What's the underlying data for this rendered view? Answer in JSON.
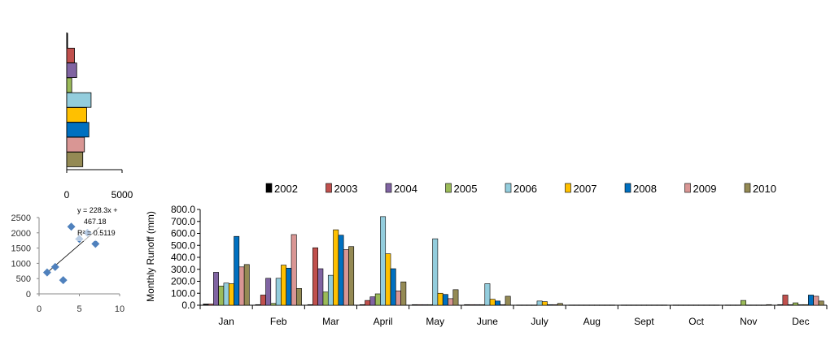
{
  "chart_data": [
    {
      "type": "bar",
      "orientation": "horizontal",
      "values": [
        80,
        700,
        900,
        450,
        2200,
        1800,
        2000,
        1600,
        1450
      ],
      "colors": [
        "#000000",
        "#c0504d",
        "#8064a2",
        "#9bbb59",
        "#93cddd",
        "#ffc000",
        "#0070c0",
        "#d99694",
        "#948a54"
      ],
      "xlim": [
        0,
        5000
      ],
      "xticks": [
        "0",
        "5000"
      ],
      "grid": false
    },
    {
      "type": "scatter",
      "x": [
        1,
        2,
        3,
        4,
        5,
        6,
        7
      ],
      "y": [
        700,
        880,
        450,
        2200,
        1800,
        2000,
        1640
      ],
      "xlim": [
        0,
        10
      ],
      "ylim": [
        0,
        2500
      ],
      "xticks": [
        "0",
        "5",
        "10"
      ],
      "yticks": [
        "0",
        "500",
        "1000",
        "1500",
        "2000",
        "2500"
      ],
      "trendline": {
        "slope": 228.3,
        "intercept": 467.18
      },
      "annotation_lines": [
        "y = 228.3x +",
        "467.18",
        "R² = 0.5119"
      ],
      "marker_color": "#4f81bd"
    },
    {
      "type": "bar",
      "ylabel": "Monthly  Runoff (mm)",
      "ylim": [
        0,
        800
      ],
      "yticks": [
        "0.0",
        "100.0",
        "200.0",
        "300.0",
        "400.0",
        "500.0",
        "600.0",
        "700.0",
        "800.0"
      ],
      "categories": [
        "Jan",
        "Feb",
        "Mar",
        "April",
        "May",
        "June",
        "July",
        "Aug",
        "Sept",
        "Oct",
        "Nov",
        "Dec"
      ],
      "legend_position": "top",
      "series": [
        {
          "name": "2002",
          "color": "#000000",
          "values": [
            10,
            5,
            5,
            5,
            5,
            5,
            2,
            2,
            2,
            2,
            2,
            5
          ]
        },
        {
          "name": "2003",
          "color": "#c0504d",
          "values": [
            10,
            85,
            480,
            40,
            5,
            5,
            2,
            2,
            2,
            2,
            2,
            85
          ]
        },
        {
          "name": "2004",
          "color": "#8064a2",
          "values": [
            275,
            225,
            305,
            70,
            5,
            5,
            2,
            2,
            2,
            2,
            2,
            5
          ]
        },
        {
          "name": "2005",
          "color": "#9bbb59",
          "values": [
            160,
            15,
            110,
            95,
            5,
            5,
            2,
            2,
            2,
            2,
            40,
            20
          ]
        },
        {
          "name": "2006",
          "color": "#93cddd",
          "values": [
            185,
            225,
            250,
            740,
            555,
            180,
            35,
            2,
            2,
            2,
            2,
            5
          ]
        },
        {
          "name": "2007",
          "color": "#ffc000",
          "values": [
            180,
            335,
            630,
            430,
            100,
            50,
            30,
            2,
            2,
            2,
            2,
            5
          ]
        },
        {
          "name": "2008",
          "color": "#0070c0",
          "values": [
            575,
            310,
            585,
            305,
            90,
            35,
            5,
            2,
            2,
            2,
            2,
            85
          ]
        },
        {
          "name": "2009",
          "color": "#d99694",
          "values": [
            320,
            590,
            465,
            120,
            55,
            5,
            5,
            2,
            2,
            2,
            2,
            75
          ]
        },
        {
          "name": "2010",
          "color": "#948a54",
          "values": [
            340,
            140,
            490,
            195,
            130,
            75,
            15,
            2,
            2,
            2,
            5,
            35
          ]
        }
      ]
    }
  ]
}
